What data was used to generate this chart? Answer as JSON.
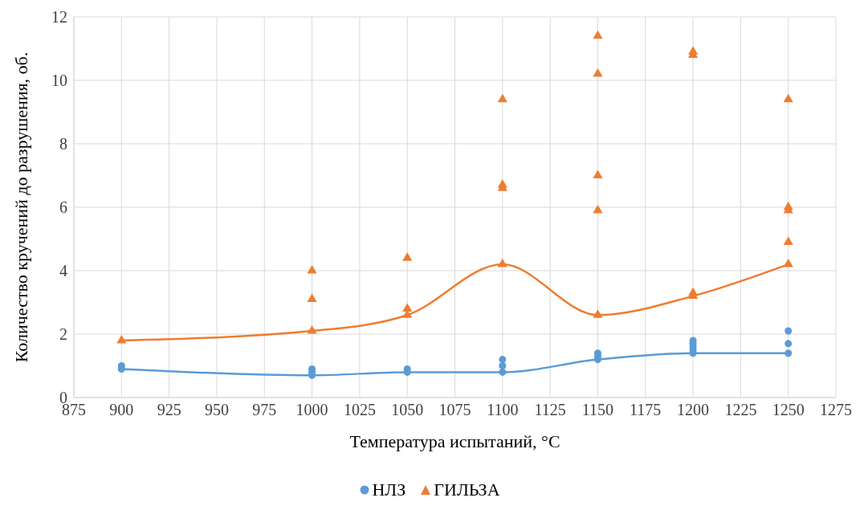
{
  "chart_data": {
    "type": "scatter",
    "xlabel": "Температура испытаний, °C",
    "ylabel": "Количество кручений до разрушения, об.",
    "xlim": [
      875,
      1275
    ],
    "xticks": [
      875,
      900,
      925,
      950,
      975,
      1000,
      1025,
      1050,
      1075,
      1100,
      1125,
      1150,
      1175,
      1200,
      1225,
      1250,
      1275
    ],
    "ylim": [
      0,
      12
    ],
    "yticks": [
      0,
      2,
      4,
      6,
      8,
      10,
      12
    ],
    "grid": true,
    "legend": "bottom",
    "series": [
      {
        "name": "НЛЗ",
        "marker": "circle",
        "color": "#5b9bd5",
        "x": [
          900,
          900,
          1000,
          1000,
          1000,
          1050,
          1050,
          1100,
          1100,
          1100,
          1150,
          1150,
          1150,
          1200,
          1200,
          1200,
          1200,
          1200,
          1250,
          1250,
          1250
        ],
        "values": [
          1.0,
          0.9,
          0.9,
          0.8,
          0.7,
          0.9,
          0.8,
          1.2,
          1.0,
          0.8,
          1.4,
          1.3,
          1.2,
          1.8,
          1.7,
          1.6,
          1.5,
          1.4,
          2.1,
          1.7,
          1.4
        ]
      },
      {
        "name": "ГИЛЬЗА",
        "marker": "triangle",
        "color": "#ed7d31",
        "x": [
          900,
          1000,
          1000,
          1000,
          1050,
          1050,
          1050,
          1100,
          1100,
          1100,
          1100,
          1150,
          1150,
          1150,
          1150,
          1150,
          1200,
          1200,
          1200,
          1200,
          1250,
          1250,
          1250,
          1250,
          1250
        ],
        "values": [
          1.8,
          4.0,
          3.1,
          2.1,
          4.4,
          2.8,
          2.6,
          9.4,
          6.7,
          6.6,
          4.2,
          11.4,
          10.2,
          7.0,
          5.9,
          2.6,
          10.9,
          10.8,
          3.3,
          3.2,
          9.4,
          6.0,
          5.9,
          4.9,
          4.2
        ]
      },
      {
        "type": "line",
        "marker": "none",
        "color": "#5b9bd5",
        "x": [
          900,
          1000,
          1050,
          1100,
          1150,
          1200,
          1250
        ],
        "values": [
          0.9,
          0.7,
          0.8,
          0.8,
          1.2,
          1.4,
          1.4
        ]
      },
      {
        "type": "line",
        "marker": "none",
        "color": "#ed7d31",
        "x": [
          900,
          1000,
          1050,
          1100,
          1150,
          1200,
          1250
        ],
        "values": [
          1.8,
          2.1,
          2.6,
          4.2,
          2.6,
          3.2,
          4.2
        ]
      }
    ]
  }
}
